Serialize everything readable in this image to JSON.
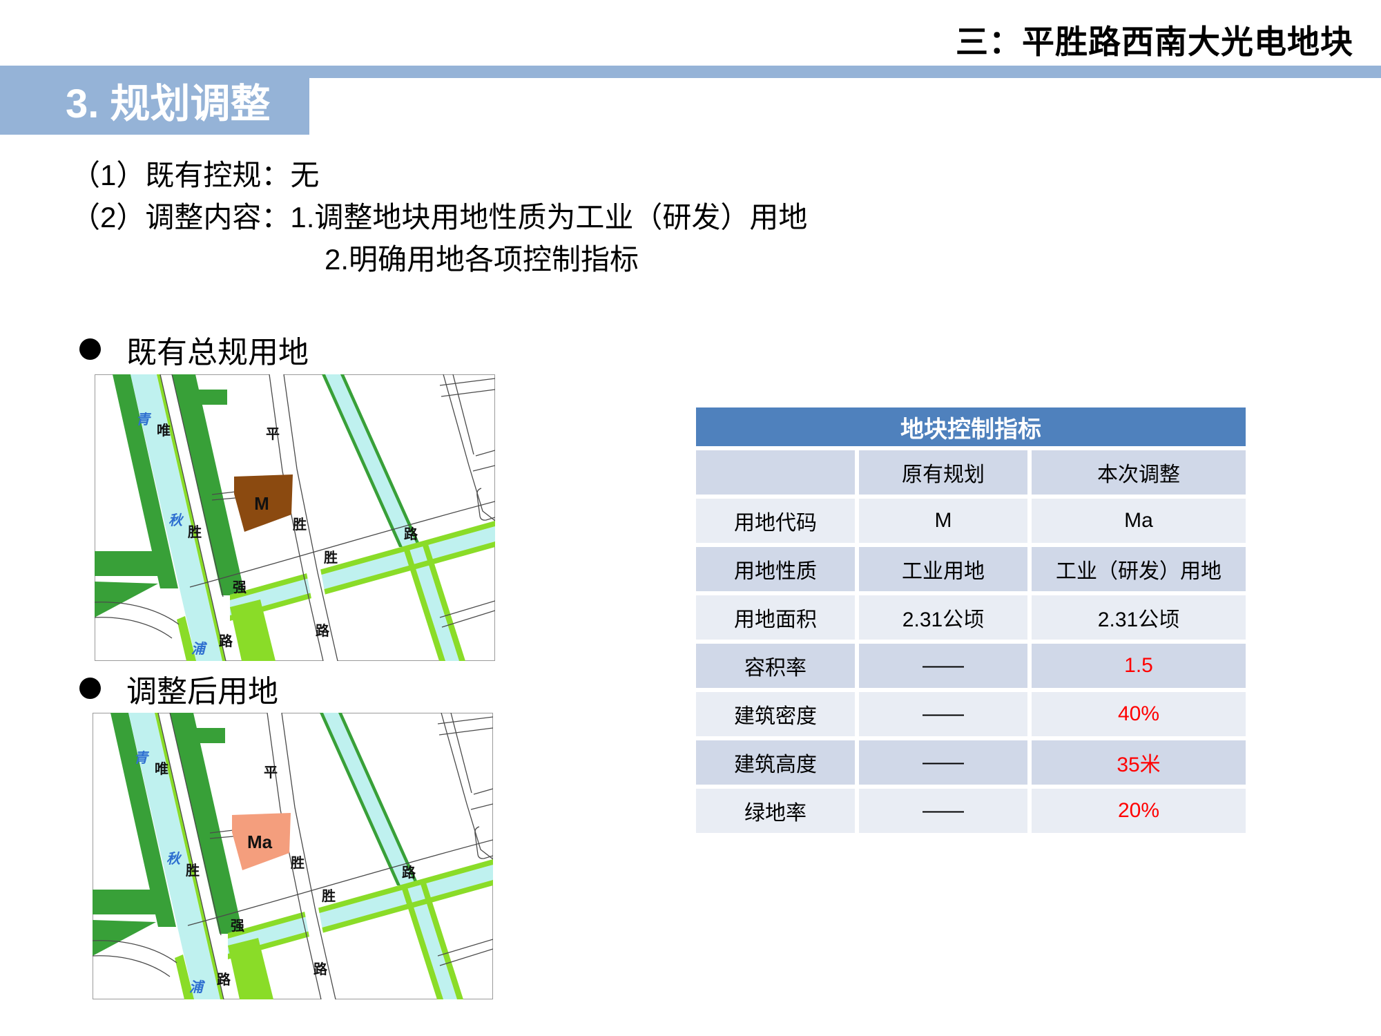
{
  "page": {
    "title": "三：平胜路西南大光电地块",
    "section_banner": "3. 规划调整",
    "banner_color": "#95B3D7",
    "paragraph": {
      "line1": "（1）既有控规：无",
      "line2": "（2）调整内容：1.调整地块用地性质为工业（研发）用地",
      "line3": "2.明确用地各项控制指标"
    },
    "bullet1": "既有总规用地",
    "bullet2": "调整后用地"
  },
  "maps": {
    "map1": {
      "caption": "既有总规用地",
      "parcel_label": "M",
      "parcel_color": "#8B4A10"
    },
    "map2": {
      "caption": "调整后用地",
      "parcel_label": "Ma",
      "parcel_color": "#F49E7D"
    },
    "labels": {
      "river": {
        "a": "青",
        "b": "秋",
        "c": "浦"
      },
      "weisheng": {
        "a": "唯",
        "b": "胜",
        "c": "路"
      },
      "pingsheng": {
        "a": "平",
        "b": "胜",
        "c": "路"
      },
      "qiangsheng": {
        "a": "强",
        "b": "胜",
        "c": "路"
      }
    },
    "colors": {
      "water": "#BFF1EF",
      "green_dark": "#38A038",
      "green_bright": "#8ADC28",
      "river_label": "#2E6FD0"
    }
  },
  "table": {
    "title": "地块控制指标",
    "columns": [
      "",
      "原有规划",
      "本次调整"
    ],
    "rows": [
      {
        "label": "用地代码",
        "old": "M",
        "new": "Ma",
        "red": false
      },
      {
        "label": "用地性质",
        "old": "工业用地",
        "new": "工业（研发）用地",
        "red": false
      },
      {
        "label": "用地面积",
        "old": "2.31公顷",
        "new": "2.31公顷",
        "red": false
      },
      {
        "label": "容积率",
        "old": "——",
        "new": "1.5",
        "red": true
      },
      {
        "label": "建筑密度",
        "old": "——",
        "new": "40%",
        "red": true
      },
      {
        "label": "建筑高度",
        "old": "——",
        "new": "35米",
        "red": true
      },
      {
        "label": "绿地率",
        "old": "——",
        "new": "20%",
        "red": true
      }
    ],
    "colors": {
      "header_bg": "#4F81BD",
      "band_dark": "#D0D8E8",
      "band_light": "#E9EDF4",
      "highlight": "#FF0000"
    }
  }
}
